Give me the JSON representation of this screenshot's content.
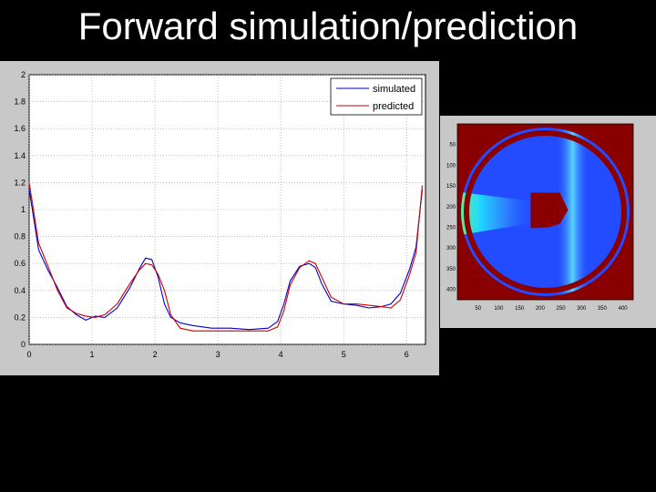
{
  "slide": {
    "title": "Forward simulation/prediction"
  },
  "chart_data": [
    {
      "type": "line",
      "title": "",
      "xlabel": "",
      "ylabel": "",
      "xlim": [
        0,
        6.3
      ],
      "ylim": [
        0,
        2
      ],
      "grid": true,
      "legend_position": "top-right",
      "x_ticks": [
        "0",
        "1",
        "2",
        "3",
        "4",
        "5",
        "6"
      ],
      "y_ticks": [
        "0",
        "0.2",
        "0.4",
        "0.6",
        "0.8",
        "1",
        "1.2",
        "1.4",
        "1.6",
        "1.8",
        "2"
      ],
      "series": [
        {
          "name": "simulated",
          "color": "#0000cc",
          "x": [
            0.0,
            0.05,
            0.15,
            0.3,
            0.45,
            0.6,
            0.75,
            0.9,
            1.05,
            1.2,
            1.4,
            1.6,
            1.75,
            1.85,
            1.95,
            2.05,
            2.15,
            2.25,
            2.4,
            2.6,
            2.9,
            3.2,
            3.5,
            3.8,
            3.95,
            4.05,
            4.15,
            4.3,
            4.45,
            4.55,
            4.65,
            4.8,
            5.0,
            5.2,
            5.4,
            5.6,
            5.75,
            5.9,
            6.05,
            6.15,
            6.25
          ],
          "y": [
            1.15,
            1.0,
            0.7,
            0.55,
            0.42,
            0.28,
            0.22,
            0.18,
            0.21,
            0.2,
            0.27,
            0.42,
            0.56,
            0.64,
            0.63,
            0.5,
            0.3,
            0.2,
            0.16,
            0.14,
            0.12,
            0.12,
            0.11,
            0.12,
            0.17,
            0.3,
            0.47,
            0.58,
            0.6,
            0.57,
            0.45,
            0.32,
            0.3,
            0.29,
            0.27,
            0.28,
            0.3,
            0.38,
            0.56,
            0.72,
            1.15
          ]
        },
        {
          "name": "predicted",
          "color": "#cc0000",
          "x": [
            0.0,
            0.05,
            0.15,
            0.3,
            0.45,
            0.6,
            0.75,
            0.9,
            1.05,
            1.2,
            1.4,
            1.6,
            1.75,
            1.85,
            1.95,
            2.05,
            2.15,
            2.25,
            2.4,
            2.6,
            2.9,
            3.2,
            3.5,
            3.8,
            3.95,
            4.05,
            4.15,
            4.3,
            4.45,
            4.55,
            4.65,
            4.8,
            5.0,
            5.2,
            5.4,
            5.6,
            5.75,
            5.9,
            6.05,
            6.15,
            6.25
          ],
          "y": [
            1.2,
            1.05,
            0.75,
            0.58,
            0.4,
            0.27,
            0.23,
            0.21,
            0.2,
            0.22,
            0.3,
            0.45,
            0.55,
            0.6,
            0.59,
            0.52,
            0.4,
            0.22,
            0.12,
            0.1,
            0.1,
            0.1,
            0.1,
            0.1,
            0.13,
            0.25,
            0.44,
            0.57,
            0.62,
            0.6,
            0.5,
            0.35,
            0.3,
            0.3,
            0.29,
            0.28,
            0.27,
            0.33,
            0.52,
            0.68,
            1.18
          ]
        }
      ]
    },
    {
      "type": "heatmap",
      "title": "",
      "xlabel": "",
      "ylabel": "",
      "colormap": "jet",
      "x_ticks": [
        "50",
        "100",
        "150",
        "200",
        "250",
        "300",
        "350",
        "400"
      ],
      "y_ticks": [
        "50",
        "100",
        "150",
        "200",
        "250",
        "300",
        "350",
        "400"
      ],
      "colors": {
        "background": "#1a35ff",
        "ring": "#8a0000",
        "corner": "#8a0000",
        "core": "#8a0000"
      }
    }
  ]
}
